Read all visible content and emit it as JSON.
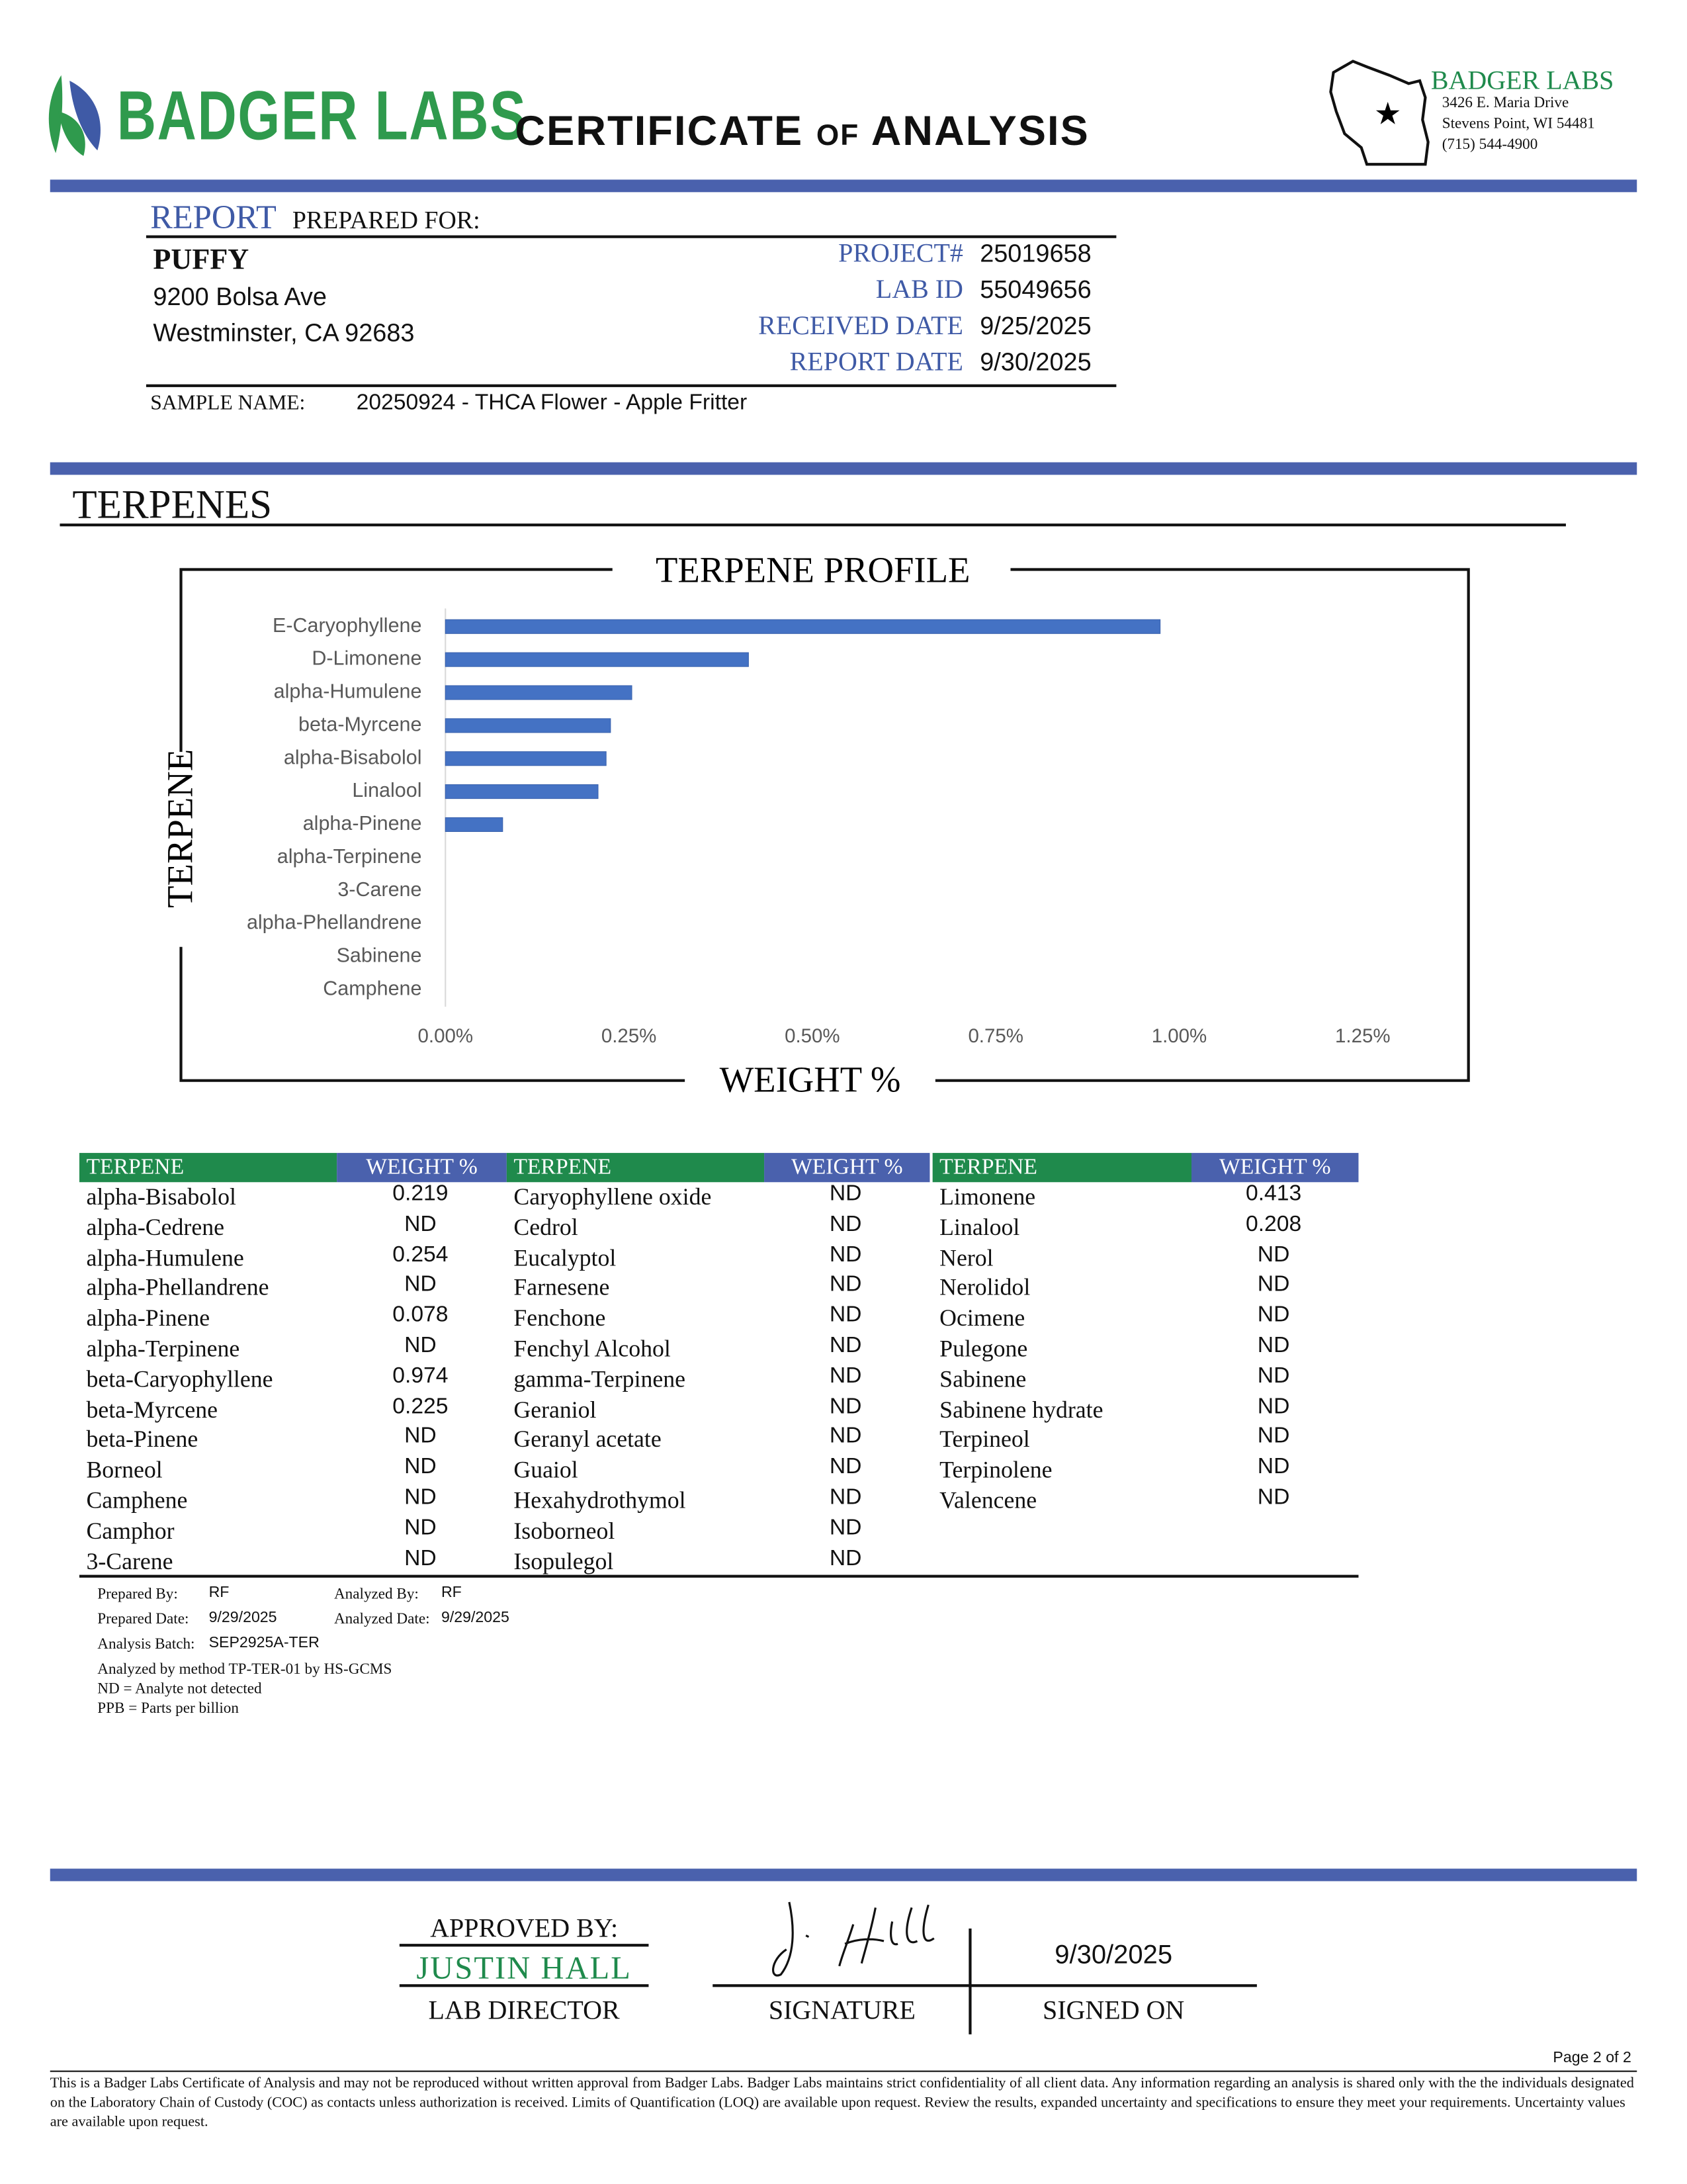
{
  "header": {
    "logo_text": "BADGER LABS",
    "title": "CERTIFICATE of ANALYSIS",
    "lab_name": "BADGER LABS",
    "address": [
      "3426 E. Maria Drive",
      "Stevens Point, WI 54481",
      "(715) 544-4900"
    ]
  },
  "report": {
    "label_main": "REPORT",
    "label_rest": "PREPARED FOR:",
    "client": "PUFFY",
    "client_address": [
      "9200 Bolsa Ave",
      "Westminster, CA 92683"
    ],
    "fields": [
      [
        "PROJECT#",
        "25019658"
      ],
      [
        "LAB ID",
        "55049656"
      ],
      [
        "RECEIVED DATE",
        "9/25/2025"
      ],
      [
        "REPORT DATE",
        "9/30/2025"
      ]
    ],
    "sample_label": "SAMPLE NAME:",
    "sample_name": "20250924 - THCA Flower - Apple Fritter"
  },
  "section_title": "TERPENES",
  "chart_data": {
    "type": "bar",
    "orientation": "horizontal",
    "title": "TERPENE PROFILE",
    "x_label": "WEIGHT %",
    "y_label": "TERPENE",
    "color": "#4472c4",
    "categories": [
      "E-Caryophyllene",
      "D-Limonene",
      "alpha-Humulene",
      "beta-Myrcene",
      "alpha-Bisabolol",
      "Linalool",
      "alpha-Pinene",
      "alpha-Terpinene",
      "3-Carene",
      "alpha-Phellandrene",
      "Sabinene",
      "Camphene"
    ],
    "values": [
      0.974,
      0.413,
      0.254,
      0.225,
      0.219,
      0.208,
      0.078,
      0,
      0,
      0,
      0,
      0
    ],
    "xlim": [
      0,
      1.25
    ],
    "xticks": [
      {
        "value": 0,
        "label": "0.00%"
      },
      {
        "value": 0.25,
        "label": "0.25%"
      },
      {
        "value": 0.5,
        "label": "0.50%"
      },
      {
        "value": 0.75,
        "label": "0.75%"
      },
      {
        "value": 1,
        "label": "1.00%"
      },
      {
        "value": 1.25,
        "label": "1.25%"
      }
    ]
  },
  "table": {
    "groups": [
      {
        "headers": [
          "TERPENE",
          "WEIGHT %"
        ],
        "rows": [
          [
            "alpha-Bisabolol",
            0.219
          ],
          [
            "alpha-Cedrene",
            "ND"
          ],
          [
            "alpha-Humulene",
            0.254
          ],
          [
            "alpha-Phellandrene",
            "ND"
          ],
          [
            "alpha-Pinene",
            0.078
          ],
          [
            "alpha-Terpinene",
            "ND"
          ],
          [
            "beta-Caryophyllene",
            0.974
          ],
          [
            "beta-Myrcene",
            0.225
          ],
          [
            "beta-Pinene",
            "ND"
          ],
          [
            "Borneol",
            "ND"
          ],
          [
            "Camphene",
            "ND"
          ],
          [
            "Camphor",
            "ND"
          ],
          [
            "3-Carene",
            "ND"
          ]
        ]
      },
      {
        "headers": [
          "TERPENE",
          "WEIGHT %"
        ],
        "rows": [
          [
            "Caryophyllene oxide",
            "ND"
          ],
          [
            "Cedrol",
            "ND"
          ],
          [
            "Eucalyptol",
            "ND"
          ],
          [
            "Farnesene",
            "ND"
          ],
          [
            "Fenchone",
            "ND"
          ],
          [
            "Fenchyl Alcohol",
            "ND"
          ],
          [
            "gamma-Terpinene",
            "ND"
          ],
          [
            "Geraniol",
            "ND"
          ],
          [
            "Geranyl acetate",
            "ND"
          ],
          [
            "Guaiol",
            "ND"
          ],
          [
            "Hexahydrothymol",
            "ND"
          ],
          [
            "Isoborneol",
            "ND"
          ],
          [
            "Isopulegol",
            "ND"
          ]
        ]
      },
      {
        "headers": [
          "TERPENE",
          "WEIGHT %"
        ],
        "rows": [
          [
            "Limonene",
            0.413
          ],
          [
            "Linalool",
            0.208
          ],
          [
            "Nerol",
            "ND"
          ],
          [
            "Nerolidol",
            "ND"
          ],
          [
            "Ocimene",
            "ND"
          ],
          [
            "Pulegone",
            "ND"
          ],
          [
            "Sabinene",
            "ND"
          ],
          [
            "Sabinene hydrate",
            "ND"
          ],
          [
            "Terpineol",
            "ND"
          ],
          [
            "Terpinolene",
            "ND"
          ],
          [
            "Valencene",
            "ND"
          ]
        ]
      }
    ]
  },
  "analysis": {
    "fields": [
      [
        "Prepared By:",
        "RF"
      ],
      [
        "Analyzed By:",
        "RF"
      ],
      [
        "Prepared Date:",
        "9/29/2025"
      ],
      [
        "Analyzed Date:",
        "9/29/2025"
      ],
      [
        "Analysis Batch:",
        "SEP2925A-TER"
      ]
    ],
    "notes": [
      "Analyzed by method TP-TER-01 by HS-GCMS",
      "ND = Analyte not detected",
      "PPB = Parts per billion"
    ]
  },
  "approval": {
    "approved_label": "APPROVED BY:",
    "approver": "JUSTIN HALL",
    "role": "LAB DIRECTOR",
    "signature_label": "SIGNATURE",
    "signed_date": "9/30/2025",
    "signed_label": "SIGNED ON"
  },
  "footer": {
    "page": "Page 2 of 2",
    "disclaimer": "This is a Badger Labs Certificate of Analysis and may not be reproduced without written approval from Badger Labs. Badger Labs maintains strict confidentiality of all client data. Any information regarding an analysis is shared only with the the individuals designated on the Laboratory Chain of Custody (COC) as contacts unless authorization is received. Limits of Quantification (LOQ) are available upon request. Review the results, expanded uncertainty and specifications to ensure they meet your requirements. Uncertainty values are available upon request."
  }
}
